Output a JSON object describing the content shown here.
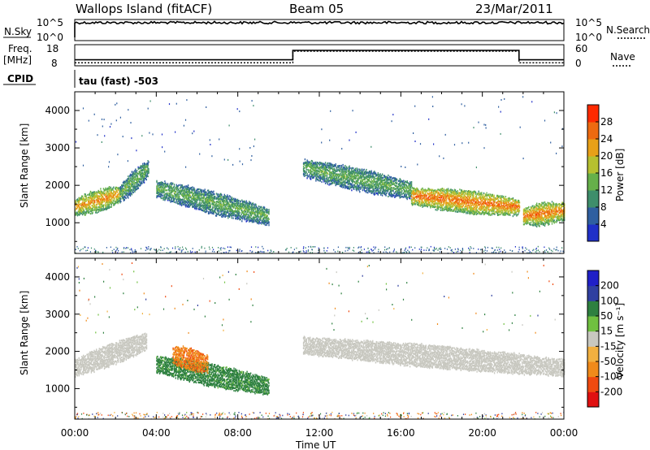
{
  "header": {
    "station": "Wallops Island (fitACF)",
    "beam": "Beam 05",
    "date": "23/Mar/2011"
  },
  "panels": {
    "nsky_label": "N.Sky",
    "nsky_tick_hi": "10^5",
    "nsky_tick_lo": "10^0",
    "nsearch_label": "N.Search",
    "nsearch_tick_hi": "10^5",
    "nsearch_tick_lo": "10^0",
    "freq_label": "Freq.",
    "freq_unit": "[MHz]",
    "freq_tick_hi": "18",
    "freq_tick_lo": "8",
    "nave_label": "Nave",
    "nave_tick_hi": "60",
    "nave_tick_lo": "0",
    "cpid_label": "CPID",
    "cpid_text": "tau (fast) -503"
  },
  "colors": {
    "power": [
      "#2030c8",
      "#2f5fa0",
      "#3e8e6b",
      "#66b04a",
      "#b6c030",
      "#e8a018",
      "#ee6a10",
      "#ff2a00"
    ],
    "velocity": [
      "#e01010",
      "#f04a10",
      "#f08a1a",
      "#f2b040",
      "#c8c8c0",
      "#70c040",
      "#2e8040",
      "#3040a0",
      "#2020c8"
    ]
  },
  "chart_data": [
    {
      "type": "heatmap",
      "name_printed": "",
      "xlabel": "",
      "ylabel": "Slant Range [km]",
      "xlim": [
        0,
        24
      ],
      "ylim": [
        180,
        4500
      ],
      "yticks": [
        1000,
        2000,
        3000,
        4000
      ],
      "colorbar": {
        "label": "Power [dB]",
        "range": [
          0,
          32
        ],
        "ticks": [
          4,
          8,
          12,
          16,
          20,
          24,
          28
        ]
      },
      "features": [
        {
          "desc": "echo band",
          "t_start": 0.0,
          "t_end": 2.2,
          "range_center": [
            1450,
            1800
          ],
          "value": 24
        },
        {
          "desc": "echo band",
          "t_start": 2.2,
          "t_end": 3.6,
          "range_center": [
            1800,
            2500
          ],
          "value": 14
        },
        {
          "desc": "echo band",
          "t_start": 4.0,
          "t_end": 9.5,
          "range_center": [
            1950,
            1200
          ],
          "value": 14
        },
        {
          "desc": "echo band",
          "t_start": 11.2,
          "t_end": 16.5,
          "range_center": [
            2500,
            1900
          ],
          "value": 14
        },
        {
          "desc": "echo band",
          "t_start": 16.5,
          "t_end": 21.8,
          "range_center": [
            1750,
            1450
          ],
          "value": 27
        },
        {
          "desc": "echo band",
          "t_start": 22.0,
          "t_end": 24.0,
          "range_center": [
            1200,
            1350
          ],
          "value": 26
        }
      ]
    },
    {
      "type": "heatmap",
      "xlabel": "Time UT",
      "ylabel": "Slant Range [km]",
      "xlim": [
        0,
        24
      ],
      "ylim": [
        180,
        4500
      ],
      "xticks": [
        "00:00",
        "04:00",
        "08:00",
        "12:00",
        "16:00",
        "20:00",
        "00:00"
      ],
      "yticks": [
        1000,
        2000,
        3000,
        4000
      ],
      "colorbar": {
        "label": "Velocity [m s⁻¹]",
        "ticks": [
          200,
          100,
          50,
          15,
          -15,
          -50,
          -100,
          -200
        ]
      },
      "features": [
        {
          "desc": "ground scatter",
          "t_start": 0.0,
          "t_end": 3.5,
          "range_center": [
            1600,
            2300
          ],
          "value": 0
        },
        {
          "desc": "slow positive",
          "t_start": 4.0,
          "t_end": 9.5,
          "range_center": [
            1700,
            1100
          ],
          "value": 40
        },
        {
          "desc": "negative patch",
          "t_start": 4.8,
          "t_end": 6.5,
          "range_center": [
            1950,
            1700
          ],
          "value": -70
        },
        {
          "desc": "ground scatter",
          "t_start": 11.2,
          "t_end": 24.0,
          "range_center": [
            2200,
            1600
          ],
          "value": 0
        }
      ]
    }
  ],
  "nsky_series": {
    "level": 0.85
  },
  "freq_series": {
    "x": [
      0,
      10.7,
      10.7,
      21.8,
      21.8,
      24
    ],
    "y": [
      8.2,
      8.2,
      14.0,
      14.0,
      8.2,
      8.2
    ]
  },
  "nave_series": {
    "x": [
      0,
      10.7,
      10.7,
      21.8,
      21.8,
      24
    ],
    "y": [
      2,
      2,
      45,
      45,
      2,
      2
    ]
  }
}
